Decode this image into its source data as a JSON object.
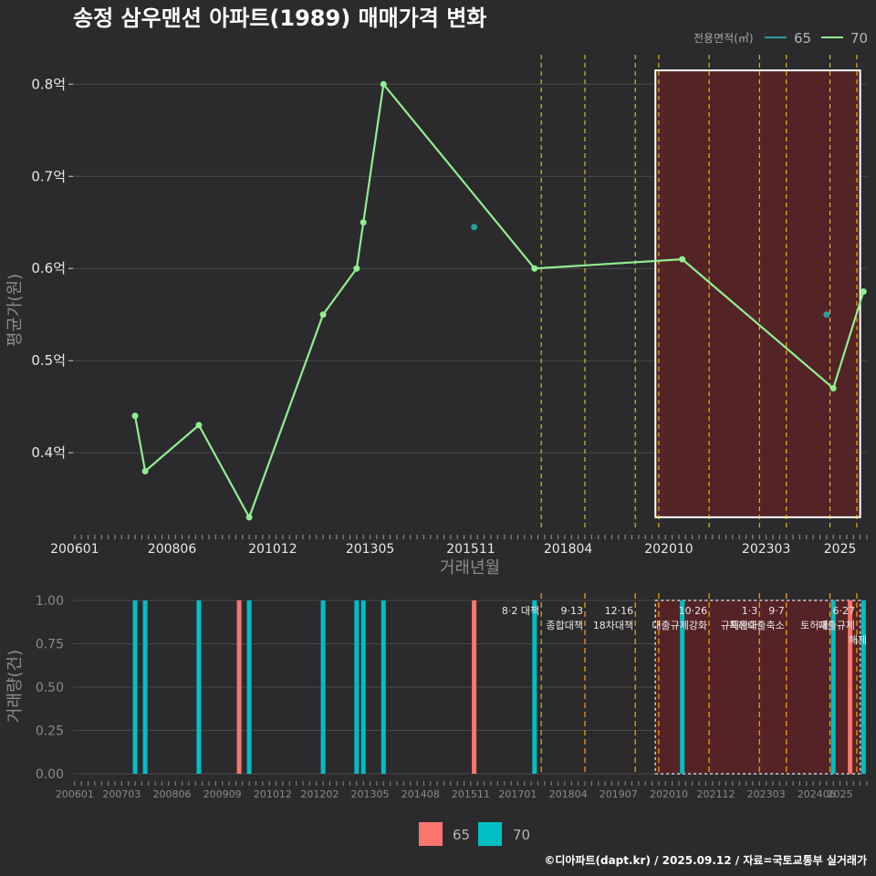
{
  "title": "송정 삼우맨션 아파트(1989) 매매가격 변화",
  "legend_top": {
    "title": "전용면적(㎡)",
    "items": [
      {
        "label": "65",
        "color": "#2a9d9a"
      },
      {
        "label": "70",
        "color": "#90ee90"
      }
    ]
  },
  "legend_bottom": {
    "items": [
      {
        "label": "65",
        "color": "#f8766d"
      },
      {
        "label": "70",
        "color": "#00bfc4"
      }
    ]
  },
  "footer": "©디아파트(dapt.kr) / 2025.09.12 / 자료=국토교통부 실거래가",
  "colors": {
    "background": "#2b2b2d",
    "grid": "#4a4a4a",
    "policy_line": "#ffd700",
    "highlight_fill": "#5a2226",
    "highlight_stroke": "#ffffff"
  },
  "chart_data": [
    {
      "type": "line",
      "title": "송정 삼우맨션 아파트(1989) 매매가격 변화",
      "xlabel": "거래년월",
      "ylabel": "평균가(원)",
      "x_ticks": [
        "200601",
        "200806",
        "201012",
        "201305",
        "201511",
        "201804",
        "202010",
        "202303",
        "2025"
      ],
      "y_ticks": [
        "0.4억",
        "0.5억",
        "0.6억",
        "0.7억",
        "0.8억"
      ],
      "y_tick_values": [
        0.4,
        0.5,
        0.6,
        0.7,
        0.8
      ],
      "ylim": [
        0.315,
        0.83
      ],
      "series": [
        {
          "name": "65",
          "color": "#2a9d9a",
          "points": [
            {
              "x": "2015-12",
              "y": 0.645
            },
            {
              "x": "2024-09",
              "y": 0.55
            }
          ]
        },
        {
          "name": "70",
          "color": "#90ee90",
          "points": [
            {
              "x": "2007-07",
              "y": 0.44
            },
            {
              "x": "2007-10",
              "y": 0.38
            },
            {
              "x": "2009-02",
              "y": 0.43
            },
            {
              "x": "2010-05",
              "y": 0.33
            },
            {
              "x": "2012-03",
              "y": 0.55
            },
            {
              "x": "2013-01",
              "y": 0.6
            },
            {
              "x": "2013-03",
              "y": 0.65
            },
            {
              "x": "2013-09",
              "y": 0.8
            },
            {
              "x": "2017-06",
              "y": 0.6
            },
            {
              "x": "2021-02",
              "y": 0.61
            },
            {
              "x": "2024-11",
              "y": 0.47
            },
            {
              "x": "2025-08",
              "y": 0.575
            }
          ]
        }
      ],
      "policy_dates": [
        "2017-08",
        "2018-09",
        "2019-12",
        "2020-07",
        "2021-10",
        "2023-01",
        "2023-09",
        "2024-10",
        "2025-06"
      ],
      "highlight_range": [
        "2020-06",
        "2025-07"
      ]
    },
    {
      "type": "bar",
      "ylabel": "거래량(건)",
      "x_ticks": [
        "200601",
        "200703",
        "200806",
        "200909",
        "201012",
        "201202",
        "201305",
        "201408",
        "201511",
        "201701",
        "201804",
        "201907",
        "202010",
        "202112",
        "202303",
        "202406",
        "2025"
      ],
      "y_ticks": [
        "0.00",
        "0.25",
        "0.50",
        "0.75",
        "1.00"
      ],
      "y_tick_values": [
        0,
        0.25,
        0.5,
        0.75,
        1.0
      ],
      "ylim": [
        0,
        1
      ],
      "bars": [
        {
          "x": "2007-07",
          "series": "70",
          "value": 1
        },
        {
          "x": "2007-10",
          "series": "70",
          "value": 1
        },
        {
          "x": "2009-02",
          "series": "70",
          "value": 1
        },
        {
          "x": "2010-02",
          "series": "65",
          "value": 1
        },
        {
          "x": "2010-05",
          "series": "70",
          "value": 1
        },
        {
          "x": "2012-03",
          "series": "70",
          "value": 1
        },
        {
          "x": "2013-01",
          "series": "70",
          "value": 1
        },
        {
          "x": "2013-03",
          "series": "70",
          "value": 1
        },
        {
          "x": "2013-09",
          "series": "70",
          "value": 1
        },
        {
          "x": "2015-12",
          "series": "65",
          "value": 1
        },
        {
          "x": "2017-06",
          "series": "70",
          "value": 1
        },
        {
          "x": "2021-02",
          "series": "70",
          "value": 1
        },
        {
          "x": "2024-11",
          "series": "70",
          "value": 1
        },
        {
          "x": "2025-04",
          "series": "65",
          "value": 1
        },
        {
          "x": "2025-08",
          "series": "70",
          "value": 1
        }
      ],
      "policies": [
        {
          "date": "2017-08",
          "lines": [
            "8·2 대책"
          ]
        },
        {
          "date": "2018-09",
          "lines": [
            "9·13",
            "종합대책"
          ]
        },
        {
          "date": "2019-12",
          "lines": [
            "12·16",
            "18차대책"
          ]
        },
        {
          "date": "2020-07",
          "lines": [
            ""
          ]
        },
        {
          "date": "2021-10",
          "lines": [
            "10·26",
            "대출규제강화"
          ]
        },
        {
          "date": "2023-01",
          "lines": [
            "1·3",
            "규제완화"
          ]
        },
        {
          "date": "2023-09",
          "lines": [
            "9·7",
            "특례대출축소"
          ]
        },
        {
          "date": "2024-10",
          "lines": [
            "",
            "토허제"
          ]
        },
        {
          "date": "2025-06",
          "lines": [
            "6·27",
            "대출규제"
          ]
        }
      ],
      "extra_labels": [
        "해제"
      ],
      "highlight_range": [
        "2020-06",
        "2025-07"
      ]
    }
  ]
}
